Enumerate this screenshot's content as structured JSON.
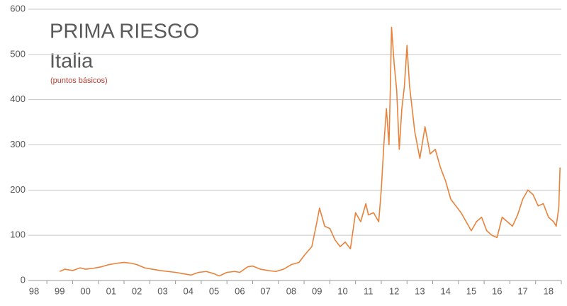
{
  "chart_data": {
    "type": "line",
    "title": [
      "PRIMA RIESGO",
      "Italia"
    ],
    "subtitle": "(puntos básicos)",
    "xlim": [
      1998,
      2018.5
    ],
    "xticks": [
      {
        "value": 1998,
        "label": "98"
      },
      {
        "value": 1999,
        "label": "99"
      },
      {
        "value": 2000,
        "label": "00"
      },
      {
        "value": 2001,
        "label": "01"
      },
      {
        "value": 2002,
        "label": "02"
      },
      {
        "value": 2003,
        "label": "03"
      },
      {
        "value": 2004,
        "label": "04"
      },
      {
        "value": 2005,
        "label": "05"
      },
      {
        "value": 2006,
        "label": "06"
      },
      {
        "value": 2007,
        "label": "07"
      },
      {
        "value": 2008,
        "label": "08"
      },
      {
        "value": 2009,
        "label": "09"
      },
      {
        "value": 2010,
        "label": "10"
      },
      {
        "value": 2011,
        "label": "11"
      },
      {
        "value": 2012,
        "label": "12"
      },
      {
        "value": 2013,
        "label": "13"
      },
      {
        "value": 2014,
        "label": "14"
      },
      {
        "value": 2015,
        "label": "15"
      },
      {
        "value": 2016,
        "label": "16"
      },
      {
        "value": 2017,
        "label": "17"
      },
      {
        "value": 2018,
        "label": "18"
      }
    ],
    "ylim": [
      0,
      600
    ],
    "yticks": [
      0,
      100,
      200,
      300,
      400,
      500,
      600
    ],
    "grid": true,
    "x": [
      1999.0,
      1999.2,
      1999.5,
      1999.8,
      2000.0,
      2000.3,
      2000.6,
      2000.9,
      2001.2,
      2001.5,
      2001.8,
      2002.0,
      2002.3,
      2002.6,
      2002.9,
      2003.2,
      2003.5,
      2003.8,
      2004.1,
      2004.4,
      2004.7,
      2005.0,
      2005.2,
      2005.5,
      2005.8,
      2006.0,
      2006.3,
      2006.5,
      2006.8,
      2007.1,
      2007.4,
      2007.7,
      2008.0,
      2008.3,
      2008.5,
      2008.8,
      2009.0,
      2009.1,
      2009.3,
      2009.5,
      2009.7,
      2009.9,
      2010.1,
      2010.3,
      2010.5,
      2010.7,
      2010.9,
      2011.0,
      2011.2,
      2011.4,
      2011.5,
      2011.6,
      2011.7,
      2011.8,
      2011.85,
      2011.9,
      2012.0,
      2012.1,
      2012.2,
      2012.3,
      2012.4,
      2012.5,
      2012.6,
      2012.7,
      2012.8,
      2012.9,
      2013.0,
      2013.2,
      2013.4,
      2013.6,
      2013.8,
      2014.0,
      2014.2,
      2014.4,
      2014.6,
      2014.8,
      2015.0,
      2015.2,
      2015.4,
      2015.6,
      2015.8,
      2016.0,
      2016.2,
      2016.4,
      2016.6,
      2016.8,
      2017.0,
      2017.2,
      2017.4,
      2017.6,
      2017.8,
      2018.0,
      2018.2,
      2018.3,
      2018.4,
      2018.45
    ],
    "series": [
      {
        "name": "Prima riesgo Italia",
        "color": "#e8823a",
        "values": [
          20,
          25,
          22,
          28,
          25,
          27,
          30,
          35,
          38,
          40,
          38,
          35,
          28,
          25,
          22,
          20,
          18,
          15,
          12,
          18,
          20,
          15,
          10,
          18,
          20,
          18,
          30,
          32,
          25,
          22,
          20,
          25,
          35,
          40,
          55,
          75,
          130,
          160,
          120,
          115,
          90,
          75,
          85,
          70,
          150,
          130,
          170,
          145,
          150,
          130,
          200,
          300,
          380,
          300,
          420,
          560,
          480,
          420,
          290,
          380,
          430,
          520,
          430,
          380,
          330,
          300,
          270,
          340,
          280,
          290,
          250,
          220,
          180,
          165,
          150,
          130,
          110,
          130,
          140,
          110,
          100,
          95,
          140,
          130,
          120,
          145,
          180,
          200,
          190,
          165,
          170,
          140,
          130,
          120,
          160,
          250
        ]
      }
    ]
  }
}
